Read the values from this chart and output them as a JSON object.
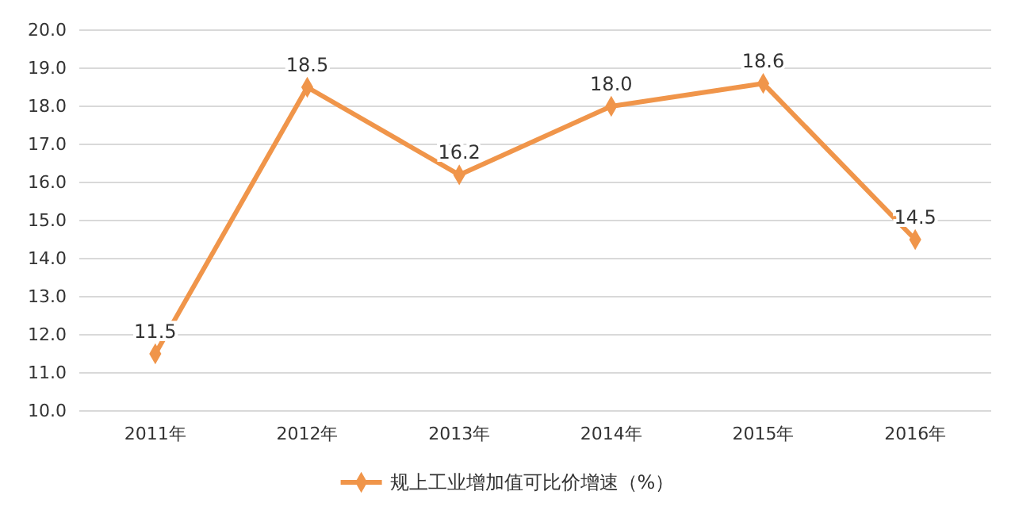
{
  "chart_data": {
    "type": "line",
    "categories": [
      "2011年",
      "2012年",
      "2013年",
      "2014年",
      "2015年",
      "2016年"
    ],
    "series": [
      {
        "name": "规上工业增加值可比价增速（%）",
        "color": "#f0954a",
        "values": [
          11.5,
          18.5,
          16.2,
          18.0,
          18.6,
          14.5
        ],
        "value_labels": [
          "11.5",
          "18.5",
          "16.2",
          "18.0",
          "18.6",
          "14.5"
        ]
      }
    ],
    "ylim": [
      10,
      20
    ],
    "yticks": [
      {
        "value": 10,
        "label": "10.0"
      },
      {
        "value": 11,
        "label": "11.0"
      },
      {
        "value": 12,
        "label": "12.0"
      },
      {
        "value": 13,
        "label": "13.0"
      },
      {
        "value": 14,
        "label": "14.0"
      },
      {
        "value": 15,
        "label": "15.0"
      },
      {
        "value": 16,
        "label": "16.0"
      },
      {
        "value": 17,
        "label": "17.0"
      },
      {
        "value": 18,
        "label": "18.0"
      },
      {
        "value": 19,
        "label": "19.0"
      },
      {
        "value": 20,
        "label": "20.0"
      }
    ],
    "grid": "y",
    "legend": "bottom",
    "marker": "diamond",
    "line_style": "solid"
  }
}
